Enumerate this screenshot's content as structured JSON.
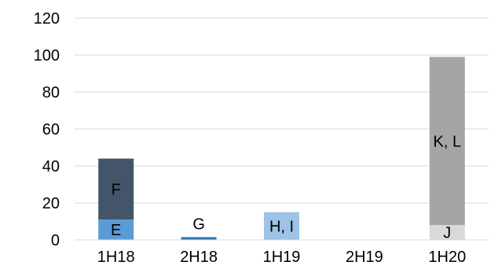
{
  "chart_data": {
    "type": "bar",
    "stacked": true,
    "title": "",
    "xlabel": "",
    "ylabel": "",
    "ylim": [
      0,
      120
    ],
    "yticks": [
      0,
      20,
      40,
      60,
      80,
      100,
      120
    ],
    "grid": true,
    "legend": "none",
    "categories": [
      "1H18",
      "2H18",
      "1H19",
      "2H19",
      "1H20"
    ],
    "bars": [
      {
        "category": "1H18",
        "segments": [
          {
            "value": 11,
            "label": "E",
            "color": "#5b9bd5"
          },
          {
            "value": 33,
            "label": "F",
            "color": "#44546a"
          }
        ]
      },
      {
        "category": "2H18",
        "segments": [
          {
            "value": 1.5,
            "label": "G",
            "color": "#2e75b6",
            "label_above": true
          }
        ]
      },
      {
        "category": "1H19",
        "segments": [
          {
            "value": 15,
            "label": "H, I",
            "color": "#9dc3e6"
          }
        ]
      },
      {
        "category": "2H19",
        "segments": []
      },
      {
        "category": "1H20",
        "segments": [
          {
            "value": 8,
            "label": "J",
            "color": "#d9d9d9"
          },
          {
            "value": 91,
            "label": "K, L",
            "color": "#a5a5a5"
          }
        ]
      }
    ]
  }
}
